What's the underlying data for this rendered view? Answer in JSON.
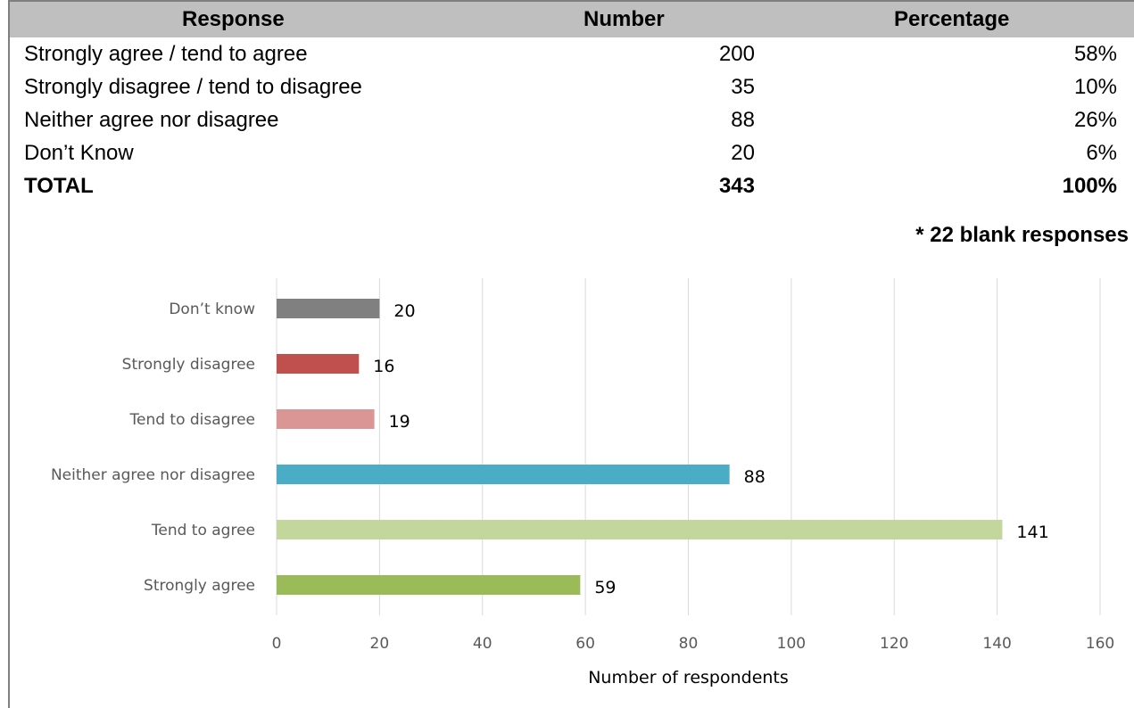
{
  "table": {
    "headers": {
      "response": "Response",
      "number": "Number",
      "percentage": "Percentage"
    },
    "rows": [
      {
        "response": "Strongly agree / tend to agree",
        "number": "200",
        "percentage": "58%"
      },
      {
        "response": "Strongly disagree / tend to disagree",
        "number": "35",
        "percentage": "10%"
      },
      {
        "response": "Neither agree nor disagree",
        "number": "88",
        "percentage": "26%"
      },
      {
        "response": "Don’t Know",
        "number": "20",
        "percentage": "6%"
      }
    ],
    "total": {
      "response": "TOTAL",
      "number": "343",
      "percentage": "100%"
    },
    "note": "* 22 blank responses"
  },
  "chart_data": {
    "type": "bar",
    "orientation": "horizontal",
    "categories": [
      "Don’t know",
      "Strongly disagree",
      "Tend to disagree",
      "Neither agree nor disagree",
      "Tend to agree",
      "Strongly agree"
    ],
    "values": [
      20,
      16,
      19,
      88,
      141,
      59
    ],
    "colors": [
      "#808080",
      "#c0504d",
      "#d99694",
      "#4bacc6",
      "#c3d69b",
      "#9bbb59"
    ],
    "xlabel": "Number of respondents",
    "ylabel": "",
    "xlim": [
      0,
      160
    ],
    "xticks": [
      0,
      20,
      40,
      60,
      80,
      100,
      120,
      140,
      160
    ],
    "grid": true,
    "data_labels": true
  }
}
